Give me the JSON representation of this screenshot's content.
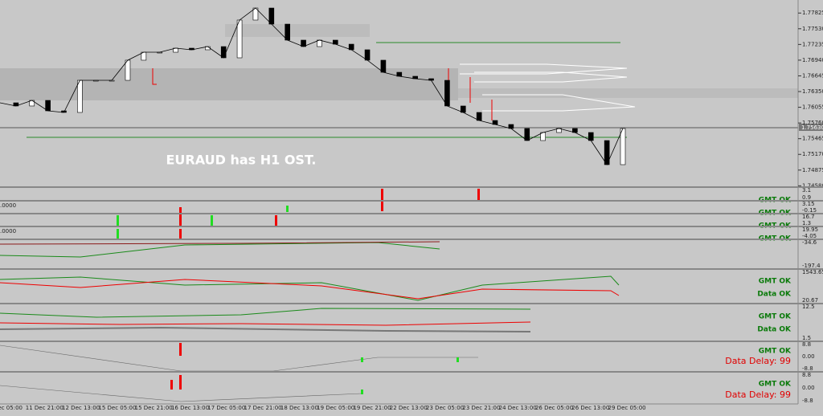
{
  "main": {
    "note": "EURAUD has H1 OST.",
    "current_price": "1.75630",
    "ylim": [
      1.7457,
      1.7807
    ],
    "yticks": [
      1.77825,
      {
        "value": 1.7753,
        "label": "1.77530"
      },
      1.77235,
      {
        "value": 1.7694,
        "label": "1.76940"
      },
      1.76645,
      {
        "value": 1.7635,
        "label": "1.76350"
      },
      1.76055,
      {
        "value": 1.7576,
        "label": "1.75760"
      },
      1.75465,
      {
        "value": 1.7517,
        "label": "1.75170"
      },
      1.74875,
      {
        "value": 1.7458,
        "label": "1.74580"
      }
    ],
    "closes": [
      1.76139,
      1.76079,
      1.76184,
      1.75988,
      1.75958,
      1.76561,
      1.76561,
      1.76561,
      1.76939,
      1.77089,
      1.77089,
      1.77165,
      1.77135,
      1.77195,
      1.76984,
      1.77693,
      1.77919,
      1.77617,
      1.77316,
      1.77195,
      1.77316,
      1.7724,
      1.77135,
      1.76939,
      1.76712,
      1.76637,
      1.76592,
      1.76561,
      1.76079,
      1.75958,
      1.75807,
      1.75732,
      1.75656,
      1.7543,
      1.75581,
      1.75656,
      1.75581,
      1.7543,
      1.74977,
      1.75656
    ]
  },
  "time_axis": [
    "Dec 05:00",
    "11 Dec 21:00",
    "12 Dec 13:00",
    "15 Dec 05:00",
    "15 Dec 21:00",
    "16 Dec 13:00",
    "17 Dec 05:00",
    "17 Dec 21:00",
    "18 Dec 13:00",
    "19 Dec 05:00",
    "19 Dec 21:00",
    "22 Dec 13:00",
    "23 Dec 05:00",
    "23 Dec 21:00",
    "24 Dec 13:00",
    "26 Dec 05:00",
    "26 Dec 13:00",
    "29 Dec 05:00"
  ],
  "panes": [
    {
      "scale": [
        "3.1",
        "0.9"
      ],
      "status": [
        "GMT OK"
      ]
    },
    {
      "left": ".0000",
      "scale": [
        "3.15",
        "-0.15"
      ],
      "status": [
        "GMT OK"
      ]
    },
    {
      "scale": [
        "16.7",
        "1.3"
      ],
      "status": [
        "GMT OK"
      ]
    },
    {
      "left": ".0000",
      "scale": [
        "19.95",
        "-4.05"
      ],
      "status": [
        "GMT OK"
      ]
    },
    {
      "scale": [
        "-34.6",
        "-197.4"
      ],
      "status": []
    },
    {
      "scale": [
        "1543.65",
        "20.67"
      ],
      "status": [
        "GMT OK",
        "Data OK"
      ]
    },
    {
      "scale": [
        "12.5",
        "1.5"
      ],
      "status": [
        "GMT OK",
        "Data OK"
      ]
    },
    {
      "scale": [
        "8.8",
        "0.00",
        "-8.8"
      ],
      "status": [
        "GMT OK",
        "Data Delay: 99"
      ]
    },
    {
      "scale": [
        "8.8",
        "0.00",
        "-8.8"
      ],
      "status": [
        "GMT OK",
        "Data Delay: 99"
      ]
    }
  ]
}
